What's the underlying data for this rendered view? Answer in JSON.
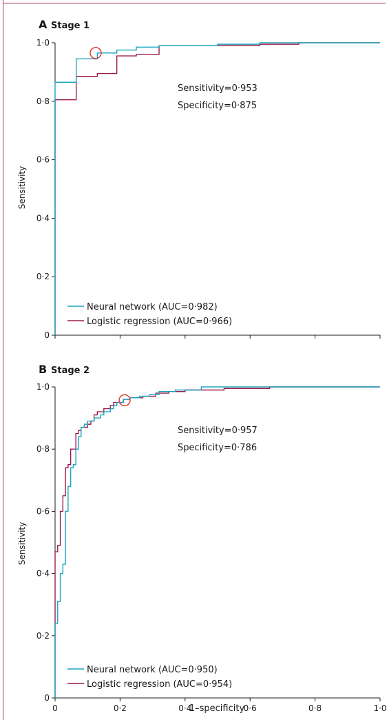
{
  "colors": {
    "neural": "#1ba3c2",
    "logistic": "#9b1d4a",
    "marker": "#e03a2e",
    "axis": "#1a1a1a",
    "frame": "#a0325a"
  },
  "chart_data": [
    {
      "type": "line",
      "panel_letter": "A",
      "title": "Stage 1",
      "xlabel": "",
      "ylabel": "Sensitivity",
      "xlim": [
        0,
        1
      ],
      "ylim": [
        0,
        1
      ],
      "x_ticks": [
        0,
        0.2,
        0.4,
        0.6,
        0.8,
        1.0
      ],
      "x_tick_labels": [],
      "y_ticks": [
        0,
        0.2,
        0.4,
        0.6,
        0.8,
        1.0
      ],
      "y_tick_labels": [
        "0",
        "0·2",
        "0·4",
        "0·6",
        "0·8",
        "1·0"
      ],
      "grid": false,
      "legend_position": "bottom-left",
      "annotation": {
        "lines": [
          "Sensitivity=0·953",
          "Specificity=0·875"
        ],
        "x": 0.125,
        "y": 0.965
      },
      "series": [
        {
          "name": "Neural network (AUC=0·982)",
          "color_key": "neural",
          "x": [
            0,
            0,
            0.065,
            0.065,
            0.13,
            0.13,
            0.19,
            0.19,
            0.25,
            0.25,
            0.32,
            0.32,
            0.5,
            0.5,
            0.63,
            0.63,
            1.0
          ],
          "y": [
            0,
            0.865,
            0.865,
            0.945,
            0.945,
            0.965,
            0.965,
            0.975,
            0.975,
            0.985,
            0.985,
            0.99,
            0.99,
            0.995,
            0.995,
            1.0,
            1.0
          ]
        },
        {
          "name": "Logistic regression (AUC=0·966)",
          "color_key": "logistic",
          "x": [
            0,
            0,
            0.065,
            0.065,
            0.13,
            0.13,
            0.19,
            0.19,
            0.25,
            0.25,
            0.32,
            0.32,
            0.5,
            0.5,
            0.63,
            0.63,
            0.75,
            0.75,
            1.0
          ],
          "y": [
            0,
            0.805,
            0.805,
            0.885,
            0.885,
            0.895,
            0.895,
            0.955,
            0.955,
            0.96,
            0.96,
            0.99,
            0.99,
            0.99,
            0.99,
            0.995,
            0.995,
            1.0,
            1.0
          ]
        }
      ]
    },
    {
      "type": "line",
      "panel_letter": "B",
      "title": "Stage 2",
      "xlabel": "1–specificity",
      "ylabel": "Sensitivity",
      "xlim": [
        0,
        1
      ],
      "ylim": [
        0,
        1
      ],
      "x_ticks": [
        0,
        0.2,
        0.4,
        0.6,
        0.8,
        1.0
      ],
      "x_tick_labels": [
        "0",
        "0·2",
        "0·4",
        "0·6",
        "0·8",
        "1·0"
      ],
      "y_ticks": [
        0,
        0.2,
        0.4,
        0.6,
        0.8,
        1.0
      ],
      "y_tick_labels": [
        "0",
        "0·2",
        "0·4",
        "0·6",
        "0·8",
        "1·0"
      ],
      "grid": false,
      "legend_position": "bottom-left",
      "annotation": {
        "lines": [
          "Sensitivity=0·957",
          "Specificity=0·786"
        ],
        "x": 0.214,
        "y": 0.957
      },
      "series": [
        {
          "name": "Neural network (AUC=0·950)",
          "color_key": "neural",
          "x": [
            0,
            0,
            0.008,
            0.008,
            0.016,
            0.016,
            0.024,
            0.024,
            0.032,
            0.032,
            0.04,
            0.04,
            0.048,
            0.048,
            0.056,
            0.056,
            0.064,
            0.064,
            0.072,
            0.072,
            0.08,
            0.08,
            0.09,
            0.09,
            0.1,
            0.1,
            0.11,
            0.11,
            0.12,
            0.12,
            0.13,
            0.13,
            0.14,
            0.14,
            0.15,
            0.15,
            0.16,
            0.16,
            0.17,
            0.17,
            0.18,
            0.18,
            0.19,
            0.19,
            0.2,
            0.2,
            0.21,
            0.21,
            0.23,
            0.23,
            0.26,
            0.26,
            0.29,
            0.29,
            0.32,
            0.32,
            0.37,
            0.37,
            0.45,
            0.45,
            1.0
          ],
          "y": [
            0,
            0.24,
            0.24,
            0.31,
            0.31,
            0.4,
            0.4,
            0.43,
            0.43,
            0.6,
            0.6,
            0.68,
            0.68,
            0.74,
            0.74,
            0.75,
            0.75,
            0.8,
            0.8,
            0.84,
            0.84,
            0.87,
            0.87,
            0.88,
            0.88,
            0.89,
            0.89,
            0.89,
            0.89,
            0.9,
            0.9,
            0.9,
            0.9,
            0.91,
            0.91,
            0.92,
            0.92,
            0.92,
            0.92,
            0.93,
            0.93,
            0.94,
            0.94,
            0.95,
            0.95,
            0.95,
            0.95,
            0.96,
            0.96,
            0.965,
            0.965,
            0.97,
            0.97,
            0.975,
            0.975,
            0.985,
            0.985,
            0.99,
            0.99,
            1.0,
            1.0
          ]
        },
        {
          "name": "Logistic regression (AUC=0·954)",
          "color_key": "logistic",
          "x": [
            0,
            0,
            0.008,
            0.008,
            0.016,
            0.016,
            0.024,
            0.024,
            0.032,
            0.032,
            0.04,
            0.04,
            0.048,
            0.048,
            0.056,
            0.056,
            0.064,
            0.064,
            0.072,
            0.072,
            0.08,
            0.08,
            0.09,
            0.09,
            0.1,
            0.1,
            0.11,
            0.11,
            0.12,
            0.12,
            0.13,
            0.13,
            0.14,
            0.14,
            0.15,
            0.15,
            0.16,
            0.16,
            0.17,
            0.17,
            0.18,
            0.18,
            0.19,
            0.19,
            0.2,
            0.2,
            0.21,
            0.21,
            0.23,
            0.23,
            0.27,
            0.27,
            0.31,
            0.31,
            0.35,
            0.35,
            0.4,
            0.4,
            0.52,
            0.52,
            0.66,
            0.66,
            1.0
          ],
          "y": [
            0,
            0.47,
            0.47,
            0.49,
            0.49,
            0.6,
            0.6,
            0.65,
            0.65,
            0.74,
            0.74,
            0.75,
            0.75,
            0.8,
            0.8,
            0.8,
            0.8,
            0.85,
            0.85,
            0.86,
            0.86,
            0.87,
            0.87,
            0.87,
            0.87,
            0.88,
            0.88,
            0.89,
            0.89,
            0.91,
            0.91,
            0.92,
            0.92,
            0.92,
            0.92,
            0.93,
            0.93,
            0.93,
            0.93,
            0.94,
            0.94,
            0.95,
            0.95,
            0.95,
            0.95,
            0.95,
            0.95,
            0.96,
            0.96,
            0.965,
            0.965,
            0.97,
            0.97,
            0.98,
            0.98,
            0.985,
            0.985,
            0.99,
            0.99,
            0.995,
            0.995,
            1.0,
            1.0
          ]
        }
      ]
    }
  ]
}
